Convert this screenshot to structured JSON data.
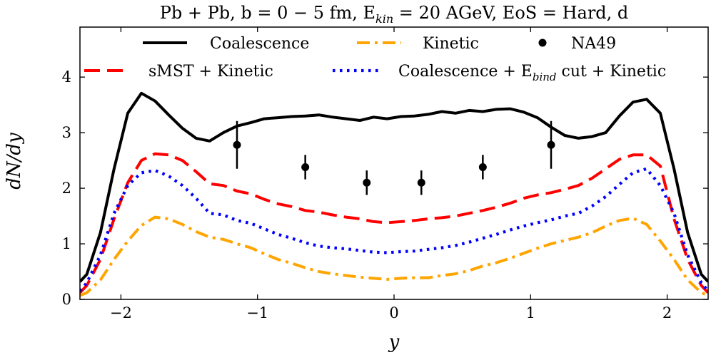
{
  "chart_data": {
    "type": "line",
    "title": "Pb + Pb, b = 0 − 5 fm, E",
    "title_sub": "kin",
    "title_tail": " = 20 AGeV, EoS = Hard, d",
    "xlabel": "y",
    "ylabel": "dN/dy",
    "xlim": [
      -2.3,
      2.3
    ],
    "ylim": [
      0,
      4.9
    ],
    "xticks": [
      -2,
      -1,
      0,
      1,
      2
    ],
    "xtick_labels": [
      "−2",
      "−1",
      "0",
      "1",
      "2"
    ],
    "yticks": [
      0,
      1,
      2,
      3,
      4
    ],
    "ytick_labels": [
      "0",
      "1",
      "2",
      "3",
      "4"
    ],
    "grid": false,
    "legend_position": "top",
    "series": [
      {
        "name": "Coalescence",
        "color": "#000000",
        "style": "solid",
        "x": [
          -2.3,
          -2.25,
          -2.15,
          -2.05,
          -1.95,
          -1.85,
          -1.75,
          -1.65,
          -1.55,
          -1.45,
          -1.35,
          -1.25,
          -1.15,
          -1.05,
          -0.95,
          -0.85,
          -0.75,
          -0.65,
          -0.55,
          -0.45,
          -0.35,
          -0.25,
          -0.15,
          -0.05,
          0.05,
          0.15,
          0.25,
          0.35,
          0.45,
          0.55,
          0.65,
          0.75,
          0.85,
          0.95,
          1.05,
          1.15,
          1.25,
          1.35,
          1.45,
          1.55,
          1.65,
          1.75,
          1.85,
          1.95,
          2.05,
          2.15,
          2.25,
          2.3
        ],
        "values": [
          0.32,
          0.45,
          1.2,
          2.35,
          3.35,
          3.71,
          3.57,
          3.32,
          3.08,
          2.9,
          2.85,
          3.0,
          3.12,
          3.18,
          3.25,
          3.27,
          3.29,
          3.3,
          3.32,
          3.28,
          3.25,
          3.22,
          3.28,
          3.25,
          3.29,
          3.3,
          3.33,
          3.38,
          3.35,
          3.4,
          3.38,
          3.42,
          3.43,
          3.37,
          3.27,
          3.1,
          2.95,
          2.9,
          2.93,
          3.0,
          3.3,
          3.55,
          3.6,
          3.35,
          2.35,
          1.2,
          0.45,
          0.32
        ]
      },
      {
        "name": "Kinetic",
        "color": "#FFA500",
        "style": "dashdot",
        "x": [
          -2.3,
          -2.25,
          -2.15,
          -2.05,
          -1.95,
          -1.85,
          -1.75,
          -1.65,
          -1.55,
          -1.45,
          -1.35,
          -1.25,
          -1.15,
          -1.05,
          -0.95,
          -0.85,
          -0.75,
          -0.65,
          -0.55,
          -0.45,
          -0.35,
          -0.25,
          -0.15,
          -0.05,
          0.05,
          0.15,
          0.25,
          0.35,
          0.45,
          0.55,
          0.65,
          0.75,
          0.85,
          0.95,
          1.05,
          1.15,
          1.25,
          1.35,
          1.45,
          1.55,
          1.65,
          1.75,
          1.85,
          1.95,
          2.05,
          2.15,
          2.25,
          2.3
        ],
        "values": [
          0.07,
          0.12,
          0.35,
          0.72,
          1.05,
          1.33,
          1.48,
          1.45,
          1.35,
          1.22,
          1.12,
          1.08,
          1.0,
          0.93,
          0.82,
          0.72,
          0.65,
          0.57,
          0.5,
          0.46,
          0.43,
          0.4,
          0.38,
          0.36,
          0.38,
          0.39,
          0.39,
          0.43,
          0.46,
          0.52,
          0.6,
          0.66,
          0.74,
          0.83,
          0.92,
          1.0,
          1.06,
          1.12,
          1.2,
          1.32,
          1.42,
          1.46,
          1.35,
          1.05,
          0.72,
          0.35,
          0.12,
          0.07
        ]
      },
      {
        "name": "NA49",
        "color": "#000000",
        "style": "points",
        "x": [
          -1.15,
          -0.65,
          -0.2,
          0.2,
          0.65,
          1.15
        ],
        "values": [
          2.78,
          2.38,
          2.1,
          2.1,
          2.38,
          2.78
        ],
        "errors": [
          0.43,
          0.22,
          0.22,
          0.22,
          0.22,
          0.43
        ]
      },
      {
        "name": "sMST + Kinetic",
        "color": "#FF0000",
        "style": "dashed",
        "x": [
          -2.3,
          -2.25,
          -2.15,
          -2.05,
          -1.95,
          -1.85,
          -1.75,
          -1.65,
          -1.55,
          -1.45,
          -1.35,
          -1.25,
          -1.15,
          -1.05,
          -0.95,
          -0.85,
          -0.75,
          -0.65,
          -0.55,
          -0.45,
          -0.35,
          -0.25,
          -0.15,
          -0.05,
          0.05,
          0.15,
          0.25,
          0.35,
          0.45,
          0.55,
          0.65,
          0.75,
          0.85,
          0.95,
          1.05,
          1.15,
          1.25,
          1.35,
          1.45,
          1.55,
          1.65,
          1.75,
          1.85,
          1.95,
          2.05,
          2.15,
          2.25,
          2.3
        ],
        "values": [
          0.12,
          0.25,
          0.72,
          1.45,
          2.1,
          2.5,
          2.62,
          2.6,
          2.5,
          2.3,
          2.08,
          2.05,
          1.95,
          1.9,
          1.8,
          1.72,
          1.67,
          1.6,
          1.57,
          1.52,
          1.48,
          1.45,
          1.4,
          1.38,
          1.4,
          1.42,
          1.45,
          1.47,
          1.5,
          1.55,
          1.6,
          1.66,
          1.73,
          1.82,
          1.88,
          1.92,
          1.98,
          2.05,
          2.18,
          2.35,
          2.52,
          2.6,
          2.6,
          2.4,
          1.45,
          0.72,
          0.25,
          0.12
        ]
      },
      {
        "name": "Coalescence + E_bind cut + Kinetic",
        "color": "#0000FF",
        "style": "dotted",
        "x": [
          -2.3,
          -2.25,
          -2.15,
          -2.05,
          -1.95,
          -1.85,
          -1.75,
          -1.65,
          -1.55,
          -1.45,
          -1.35,
          -1.25,
          -1.15,
          -1.05,
          -0.95,
          -0.85,
          -0.75,
          -0.65,
          -0.55,
          -0.45,
          -0.35,
          -0.25,
          -0.15,
          -0.05,
          0.05,
          0.15,
          0.25,
          0.35,
          0.45,
          0.55,
          0.65,
          0.75,
          0.85,
          0.95,
          1.05,
          1.15,
          1.25,
          1.35,
          1.45,
          1.55,
          1.65,
          1.75,
          1.85,
          1.95,
          2.05,
          2.15,
          2.25,
          2.3
        ],
        "values": [
          0.15,
          0.3,
          0.8,
          1.55,
          2.05,
          2.28,
          2.32,
          2.22,
          2.05,
          1.82,
          1.55,
          1.52,
          1.42,
          1.37,
          1.27,
          1.17,
          1.1,
          1.02,
          0.96,
          0.93,
          0.91,
          0.88,
          0.85,
          0.84,
          0.86,
          0.87,
          0.9,
          0.93,
          0.97,
          1.03,
          1.1,
          1.17,
          1.25,
          1.32,
          1.38,
          1.43,
          1.5,
          1.55,
          1.68,
          1.85,
          2.07,
          2.28,
          2.35,
          2.05,
          1.55,
          0.8,
          0.3,
          0.15
        ]
      }
    ],
    "legend": {
      "row1": [
        "Coalescence",
        "Kinetic",
        "NA49"
      ],
      "row2_first": "sMST + Kinetic",
      "row2_second_pre": "Coalescence + E",
      "row2_second_sub": "bind",
      "row2_second_post": " cut + Kinetic"
    }
  }
}
